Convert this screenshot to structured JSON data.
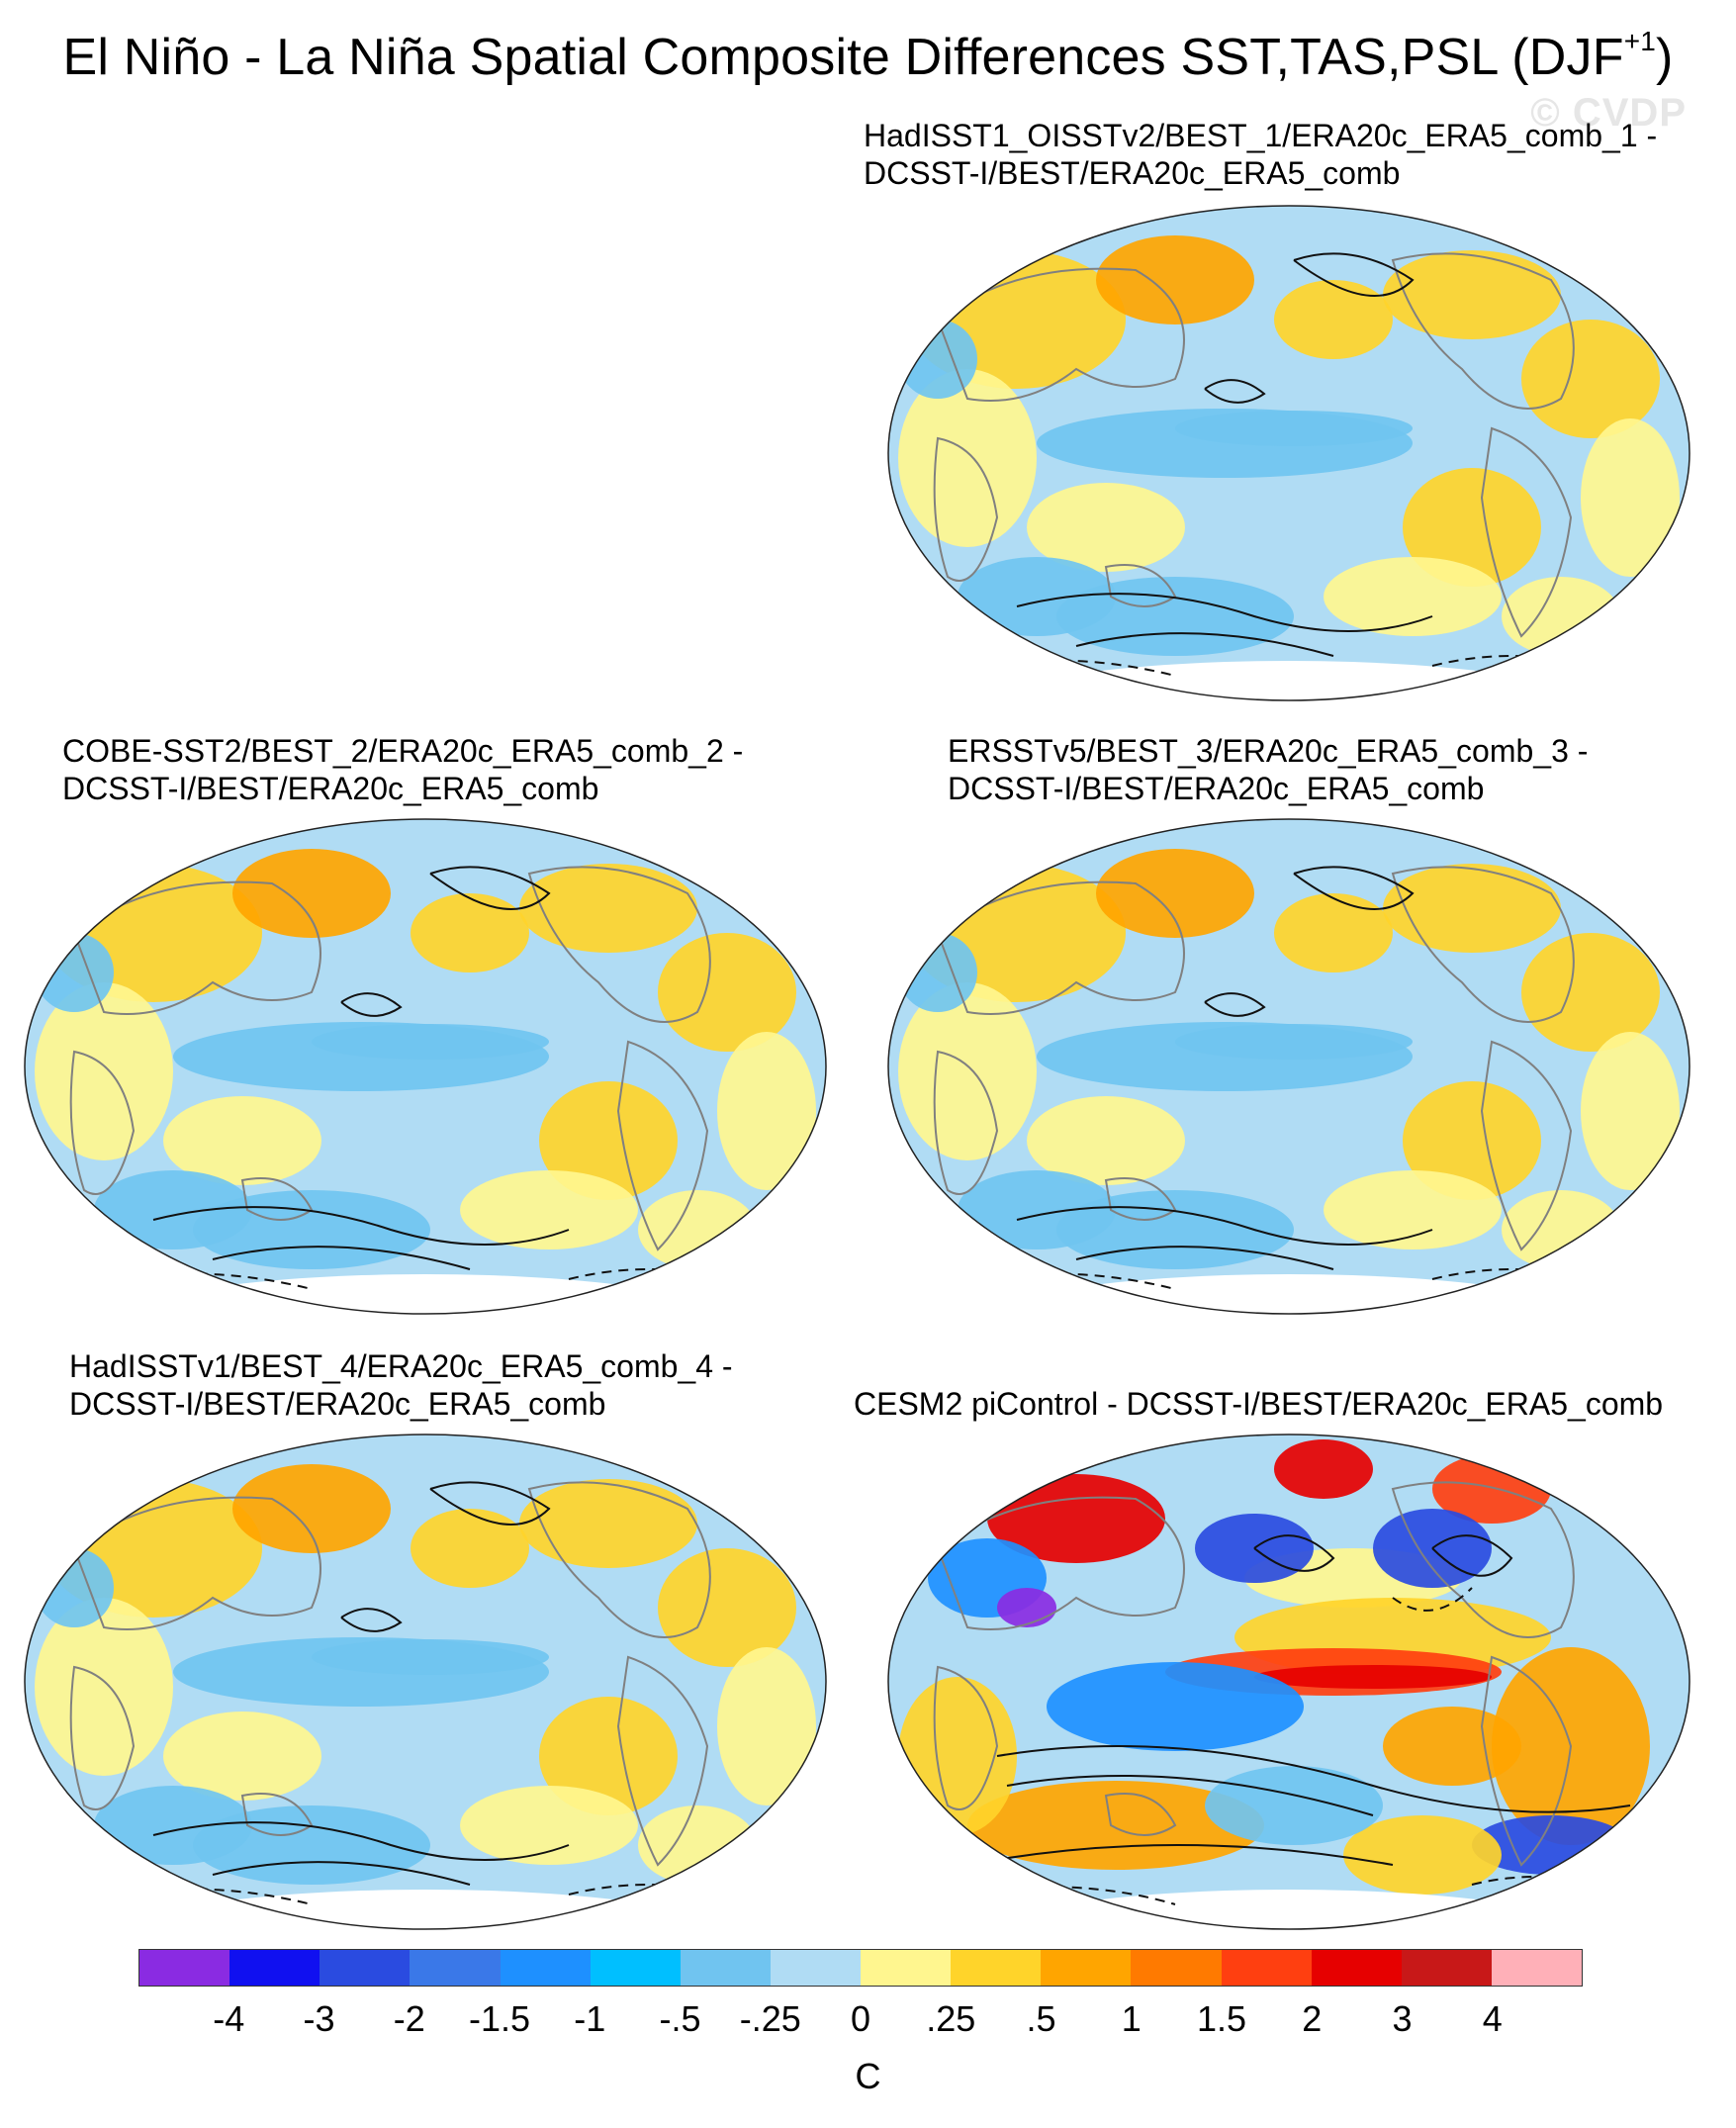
{
  "figure": {
    "title_main": "El Niño - La Niña Spatial Composite Differences SST,TAS,PSL (DJF",
    "title_sup": "+1",
    "title_close": ")",
    "watermark": "© CVDP"
  },
  "panels": [
    {
      "id": "p1",
      "line1": "HadISST1_OISSTv2/BEST_1/ERA20c_ERA5_comb_1 -",
      "line2": "DCSST-I/BEST/ERA20c_ERA5_comb",
      "style": "obs"
    },
    {
      "id": "p2",
      "line1": "COBE-SST2/BEST_2/ERA20c_ERA5_comb_2 -",
      "line2": "DCSST-I/BEST/ERA20c_ERA5_comb",
      "style": "obs"
    },
    {
      "id": "p3",
      "line1": "ERSSTv5/BEST_3/ERA20c_ERA5_comb_3 -",
      "line2": "DCSST-I/BEST/ERA20c_ERA5_comb",
      "style": "obs"
    },
    {
      "id": "p4",
      "line1": "HadISSTv1/BEST_4/ERA20c_ERA5_comb_4 -",
      "line2": "DCSST-I/BEST/ERA20c_ERA5_comb",
      "style": "obs"
    },
    {
      "id": "p5",
      "line1": "CESM2 piControl - DCSST-I/BEST/ERA20c_ERA5_comb",
      "line2": "",
      "style": "model"
    }
  ],
  "colorbar": {
    "colors": [
      "#8a2be2",
      "#1010f0",
      "#2a4be0",
      "#3a78e8",
      "#1e90ff",
      "#00bfff",
      "#70c4f0",
      "#b0dcf4",
      "#fff68f",
      "#ffd42a",
      "#ffa500",
      "#ff7a00",
      "#ff3f10",
      "#e60000",
      "#c81818",
      "#ffb0b8"
    ],
    "ticks": [
      "-4",
      "-3",
      "-2",
      "-1.5",
      "-1",
      "-.5",
      "-.25",
      "0",
      ".25",
      ".5",
      "1",
      "1.5",
      "2",
      "3",
      "4"
    ],
    "unit": "C"
  },
  "colors": {
    "ocean_cool": "#b0dcf4",
    "cool": "#70c4f0",
    "neutral_warm": "#fff68f",
    "warm": "#ffd42a",
    "warmer": "#ffa500",
    "hot": "#ff3f10",
    "strong_hot": "#e60000",
    "strong_cool": "#1e90ff",
    "deep_cool": "#2a4be0",
    "extreme_cool": "#8a2be2",
    "land_outline": "#808080"
  }
}
